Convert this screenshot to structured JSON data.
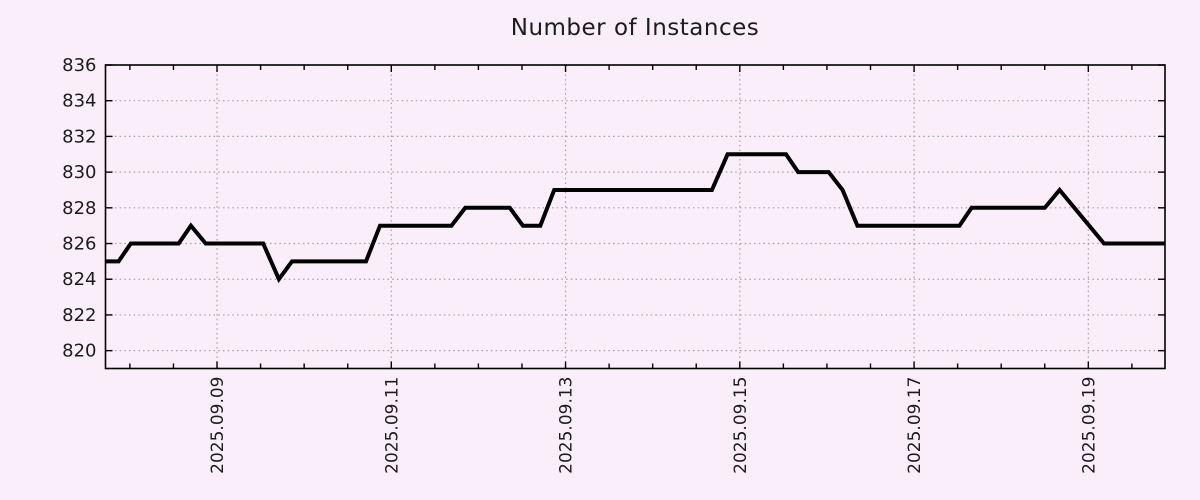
{
  "title": "Number of Instances",
  "chart_data": {
    "type": "line",
    "title": "Number of Instances",
    "xlabel": "",
    "ylabel": "",
    "legend": "none",
    "x_axis": {
      "unit": "date",
      "tick_labels": [
        "2025.09.09",
        "2025.09.11",
        "2025.09.13",
        "2025.09.15",
        "2025.09.17",
        "2025.09.19"
      ],
      "tick_positions_day_of_sep_2025": [
        9,
        11,
        13,
        15,
        17,
        19
      ],
      "minor_tick_step_days": 0.5,
      "range_day_of_sep_2025": [
        7.72,
        19.88
      ]
    },
    "y_axis": {
      "tick_labels": [
        "820",
        "822",
        "824",
        "826",
        "828",
        "830",
        "832",
        "834",
        "836"
      ],
      "tick_values": [
        820,
        822,
        824,
        826,
        828,
        830,
        832,
        834,
        836
      ],
      "range": [
        819.0,
        836
      ]
    },
    "grid": {
      "style": "dotted",
      "on": true
    },
    "series": [
      {
        "name": "instances",
        "points_day_value": [
          [
            7.72,
            825
          ],
          [
            7.87,
            825
          ],
          [
            8.01,
            826
          ],
          [
            8.56,
            826
          ],
          [
            8.7,
            827
          ],
          [
            8.87,
            826
          ],
          [
            9.53,
            826
          ],
          [
            9.71,
            824
          ],
          [
            9.86,
            825
          ],
          [
            10.71,
            825
          ],
          [
            10.87,
            827
          ],
          [
            11.69,
            827
          ],
          [
            11.85,
            828
          ],
          [
            12.36,
            828
          ],
          [
            12.51,
            827
          ],
          [
            12.71,
            827
          ],
          [
            12.87,
            829
          ],
          [
            14.68,
            829
          ],
          [
            14.86,
            831
          ],
          [
            15.53,
            831
          ],
          [
            15.67,
            830
          ],
          [
            16.02,
            830
          ],
          [
            16.18,
            829
          ],
          [
            16.35,
            827
          ],
          [
            17.52,
            827
          ],
          [
            17.66,
            828
          ],
          [
            18.5,
            828
          ],
          [
            18.67,
            829
          ],
          [
            19.18,
            826
          ],
          [
            19.88,
            826
          ]
        ]
      }
    ],
    "colors": {
      "background": "#faeefa",
      "line": "#000000",
      "grid": "#a2a2a2",
      "axis": "#000000",
      "text": "#1c1c1c"
    }
  }
}
